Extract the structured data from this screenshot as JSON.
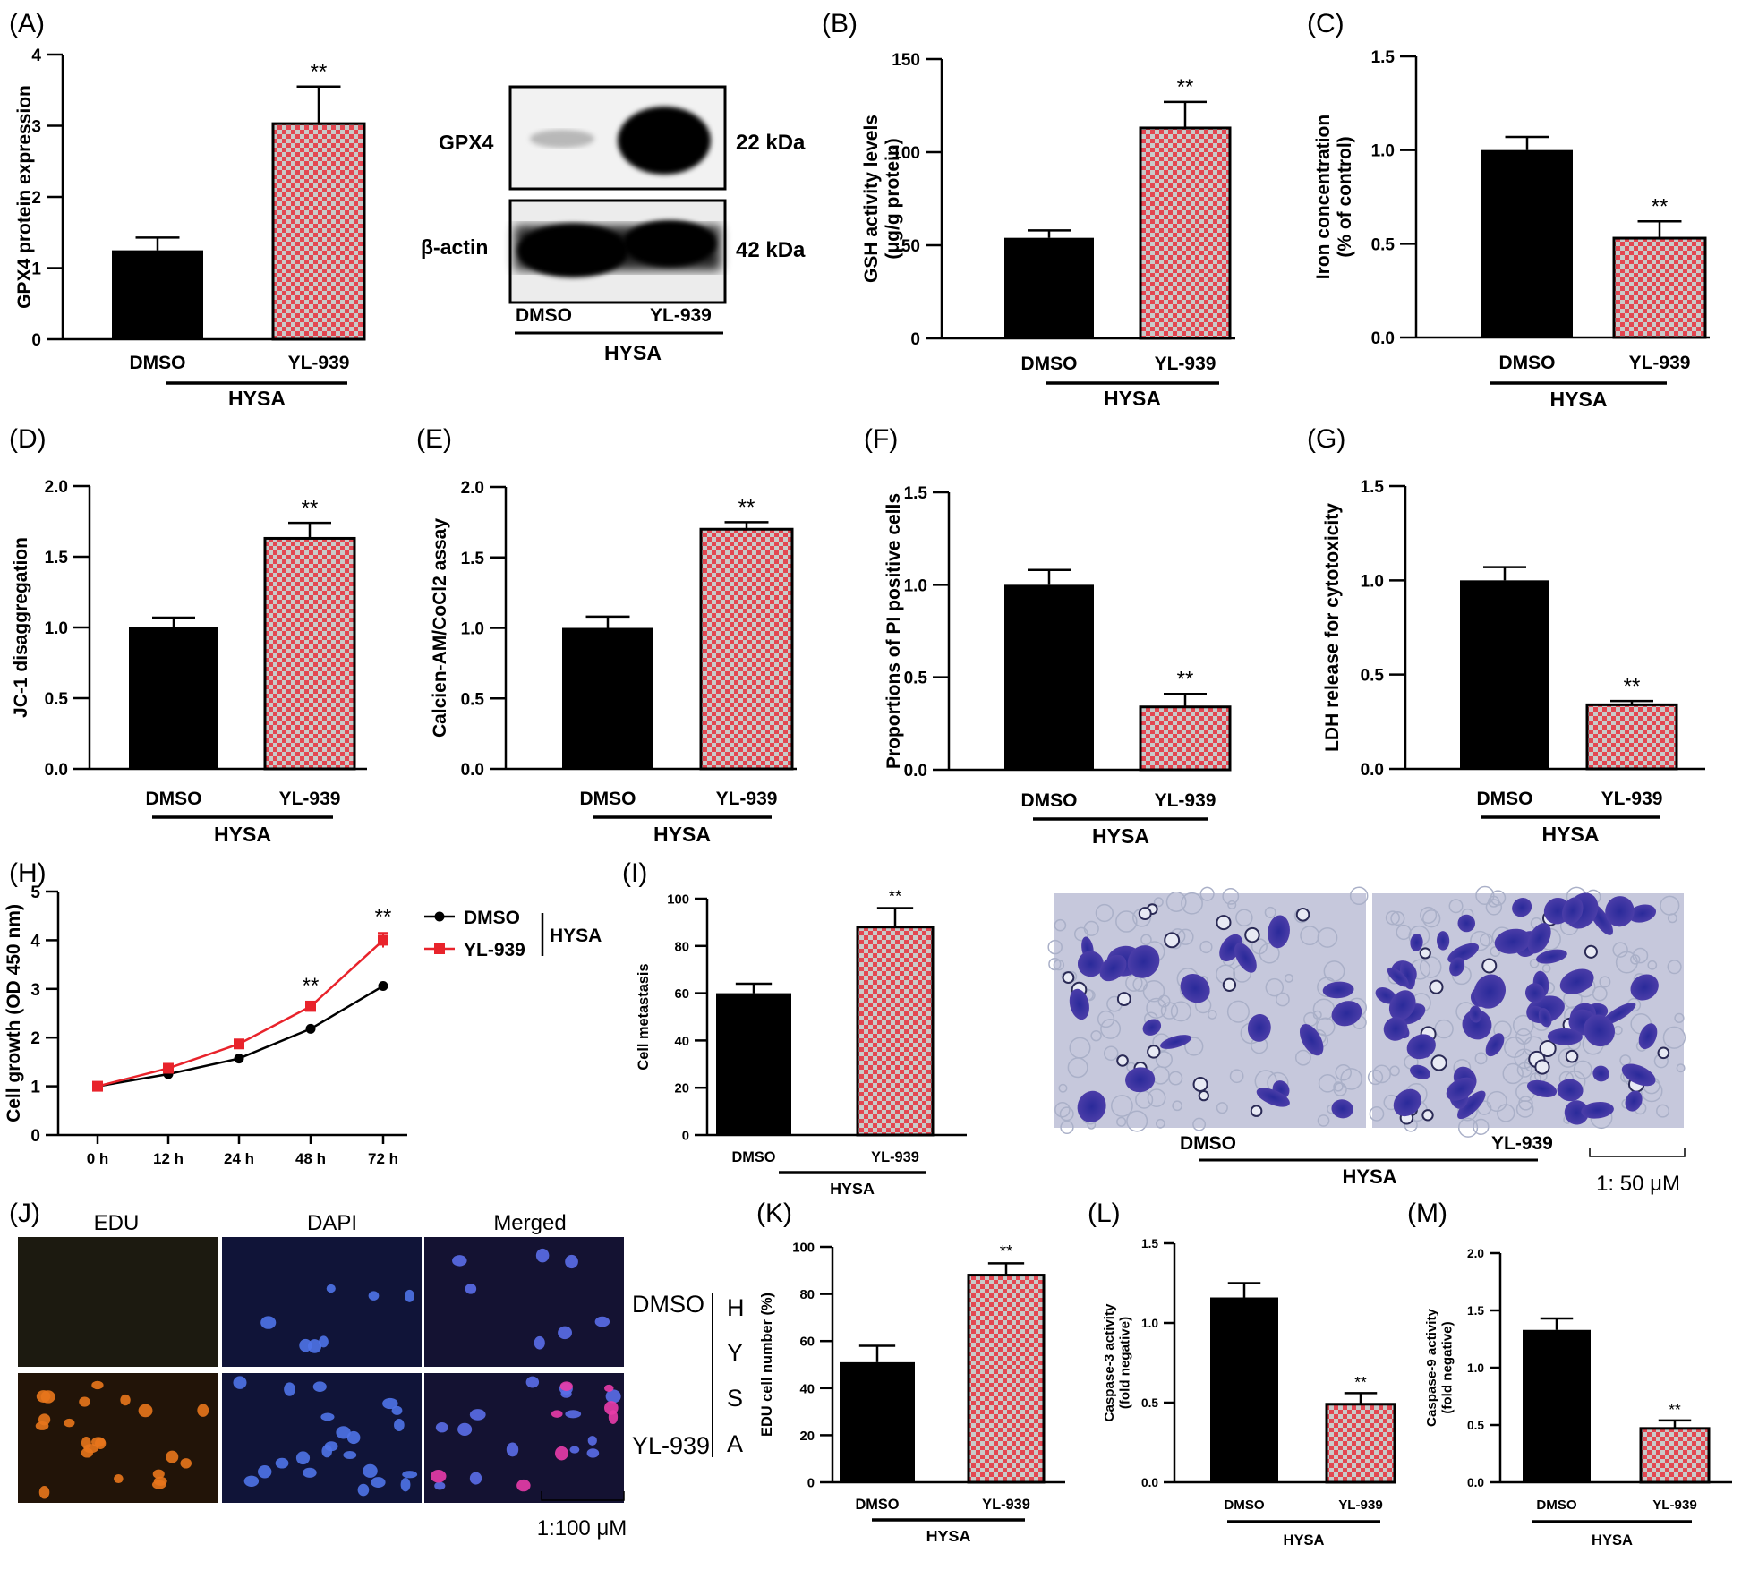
{
  "colors": {
    "dmso": "#000000",
    "yl939": "#e0323c",
    "checker_a": "#e34550",
    "checker_b": "#c8c8c8",
    "line_yl939": "#e8232b"
  },
  "shared": {
    "group": "HYSA",
    "cat_dmso": "DMSO",
    "cat_yl939": "YL-939",
    "sig": "**"
  },
  "blot": {
    "letter": "(A)",
    "rows": [
      {
        "label": "GPX4",
        "size": "22 kDa"
      },
      {
        "label": "β-actin",
        "size": "42 kDa"
      }
    ],
    "lanes": [
      "DMSO",
      "YL-939"
    ],
    "group": "HYSA"
  },
  "transwell": {
    "labels": [
      "DMSO",
      "YL-939"
    ],
    "group": "HYSA",
    "scale": "1: 50 μM"
  },
  "fluor": {
    "letter": "(J)",
    "columns": [
      "EDU",
      "DAPI",
      "Merged"
    ],
    "rows": [
      "DMSO",
      "YL-939"
    ],
    "group_letters": [
      "H",
      "Y",
      "S",
      "A"
    ],
    "scale": "1:100 μM"
  },
  "legend_h": {
    "items": [
      "DMSO",
      "YL-939"
    ],
    "group": "HYSA"
  },
  "chart_data": [
    {
      "id": "A",
      "letter": "(A)",
      "type": "bar",
      "ylabel": "GPX4 protein expression",
      "categories": [
        "DMSO",
        "YL-939"
      ],
      "values": [
        1.25,
        3.03
      ],
      "errors": [
        0.18,
        0.52
      ],
      "sig": [
        "",
        "**"
      ],
      "ylim": [
        0,
        4
      ],
      "yticks": [
        0,
        1,
        2,
        3,
        4
      ],
      "group": "HYSA"
    },
    {
      "id": "B",
      "letter": "(B)",
      "type": "bar",
      "ylabel": [
        "GSH activity levels",
        "(μg/g protein)"
      ],
      "categories": [
        "DMSO",
        "YL-939"
      ],
      "values": [
        54,
        113
      ],
      "errors": [
        4,
        14
      ],
      "sig": [
        "",
        "**"
      ],
      "ylim": [
        0,
        150
      ],
      "yticks": [
        0,
        50,
        100,
        150
      ],
      "group": "HYSA"
    },
    {
      "id": "C",
      "letter": "(C)",
      "type": "bar",
      "ylabel": [
        "Iron concentration",
        "(% of control)"
      ],
      "categories": [
        "DMSO",
        "YL-939"
      ],
      "values": [
        1.0,
        0.53
      ],
      "errors": [
        0.07,
        0.09
      ],
      "sig": [
        "",
        "**"
      ],
      "ylim": [
        0,
        1.5
      ],
      "yticks": [
        "0.0",
        "0.5",
        "1.0",
        "1.5"
      ],
      "group": "HYSA"
    },
    {
      "id": "D",
      "letter": "(D)",
      "type": "bar",
      "ylabel": "JC-1 disaggregation",
      "categories": [
        "DMSO",
        "YL-939"
      ],
      "values": [
        1.0,
        1.63
      ],
      "errors": [
        0.07,
        0.11
      ],
      "sig": [
        "",
        "**"
      ],
      "ylim": [
        0,
        2.0
      ],
      "yticks": [
        "0.0",
        "0.5",
        "1.0",
        "1.5",
        "2.0"
      ],
      "group": "HYSA"
    },
    {
      "id": "E",
      "letter": "(E)",
      "type": "bar",
      "ylabel": "Calcien-AM/CoCl2 assay",
      "categories": [
        "DMSO",
        "YL-939"
      ],
      "values": [
        1.0,
        1.7
      ],
      "errors": [
        0.08,
        0.05
      ],
      "sig": [
        "",
        "**"
      ],
      "ylim": [
        0,
        2.0
      ],
      "yticks": [
        "0.0",
        "0.5",
        "1.0",
        "1.5",
        "2.0"
      ],
      "group": "HYSA"
    },
    {
      "id": "F",
      "letter": "(F)",
      "type": "bar",
      "ylabel": "Proportions of PI positive cells",
      "categories": [
        "DMSO",
        "YL-939"
      ],
      "values": [
        1.0,
        0.34
      ],
      "errors": [
        0.08,
        0.07
      ],
      "sig": [
        "",
        "**"
      ],
      "ylim": [
        0,
        1.5
      ],
      "yticks": [
        "0.0",
        "0.5",
        "1.0",
        "1.5"
      ],
      "group": "HYSA"
    },
    {
      "id": "G",
      "letter": "(G)",
      "type": "bar",
      "ylabel": "LDH release for cytotoxicity",
      "categories": [
        "DMSO",
        "YL-939"
      ],
      "values": [
        1.0,
        0.34
      ],
      "errors": [
        0.07,
        0.02
      ],
      "sig": [
        "",
        "**"
      ],
      "ylim": [
        0,
        1.5
      ],
      "yticks": [
        "0.0",
        "0.5",
        "1.0",
        "1.5"
      ],
      "group": "HYSA"
    },
    {
      "id": "H",
      "letter": "(H)",
      "type": "line",
      "ylabel": "Cell growth (OD 450 nm)",
      "x": [
        "0 h",
        "12 h",
        "24 h",
        "48 h",
        "72 h"
      ],
      "series": [
        {
          "name": "DMSO",
          "values": [
            1.0,
            1.25,
            1.57,
            2.18,
            3.06
          ]
        },
        {
          "name": "YL-939",
          "values": [
            1.0,
            1.37,
            1.87,
            2.64,
            4.0
          ],
          "errors": [
            0.03,
            0.04,
            0.05,
            0.1,
            0.15
          ]
        }
      ],
      "sig": [
        "",
        "",
        "",
        "**",
        "**"
      ],
      "ylim": [
        0,
        5
      ],
      "yticks": [
        0,
        1,
        2,
        3,
        4,
        5
      ]
    },
    {
      "id": "I",
      "letter": "(I)",
      "type": "bar",
      "ylabel": "Cell metastasis",
      "categories": [
        "DMSO",
        "YL-939"
      ],
      "values": [
        60,
        88
      ],
      "errors": [
        4,
        8
      ],
      "sig": [
        "",
        "**"
      ],
      "ylim": [
        0,
        100
      ],
      "yticks": [
        0,
        20,
        40,
        60,
        80,
        100
      ],
      "group": "HYSA"
    },
    {
      "id": "K",
      "letter": "(K)",
      "type": "bar",
      "ylabel": "EDU cell number (%)",
      "categories": [
        "DMSO",
        "YL-939"
      ],
      "values": [
        51,
        88
      ],
      "errors": [
        7,
        5
      ],
      "sig": [
        "",
        "**"
      ],
      "ylim": [
        0,
        100
      ],
      "yticks": [
        0,
        20,
        40,
        60,
        80,
        100
      ],
      "group": "HYSA"
    },
    {
      "id": "L",
      "letter": "(L)",
      "type": "bar",
      "ylabel": [
        "Caspase-3 activity",
        "(fold negative)"
      ],
      "categories": [
        "DMSO",
        "YL-939"
      ],
      "values": [
        1.16,
        0.49
      ],
      "errors": [
        0.09,
        0.07
      ],
      "sig": [
        "",
        "**"
      ],
      "ylim": [
        0,
        1.5
      ],
      "yticks": [
        "0.0",
        "0.5",
        "1.0",
        "1.5"
      ],
      "group": "HYSA"
    },
    {
      "id": "M",
      "letter": "(M)",
      "type": "bar",
      "ylabel": [
        "Caspase-9 activity",
        "(fold negative)"
      ],
      "categories": [
        "DMSO",
        "YL-939"
      ],
      "values": [
        1.33,
        0.47
      ],
      "errors": [
        0.1,
        0.07
      ],
      "sig": [
        "",
        "**"
      ],
      "ylim": [
        0,
        2.0
      ],
      "yticks": [
        "0.0",
        "0.5",
        "1.0",
        "1.5",
        "2.0"
      ],
      "group": "HYSA"
    }
  ]
}
